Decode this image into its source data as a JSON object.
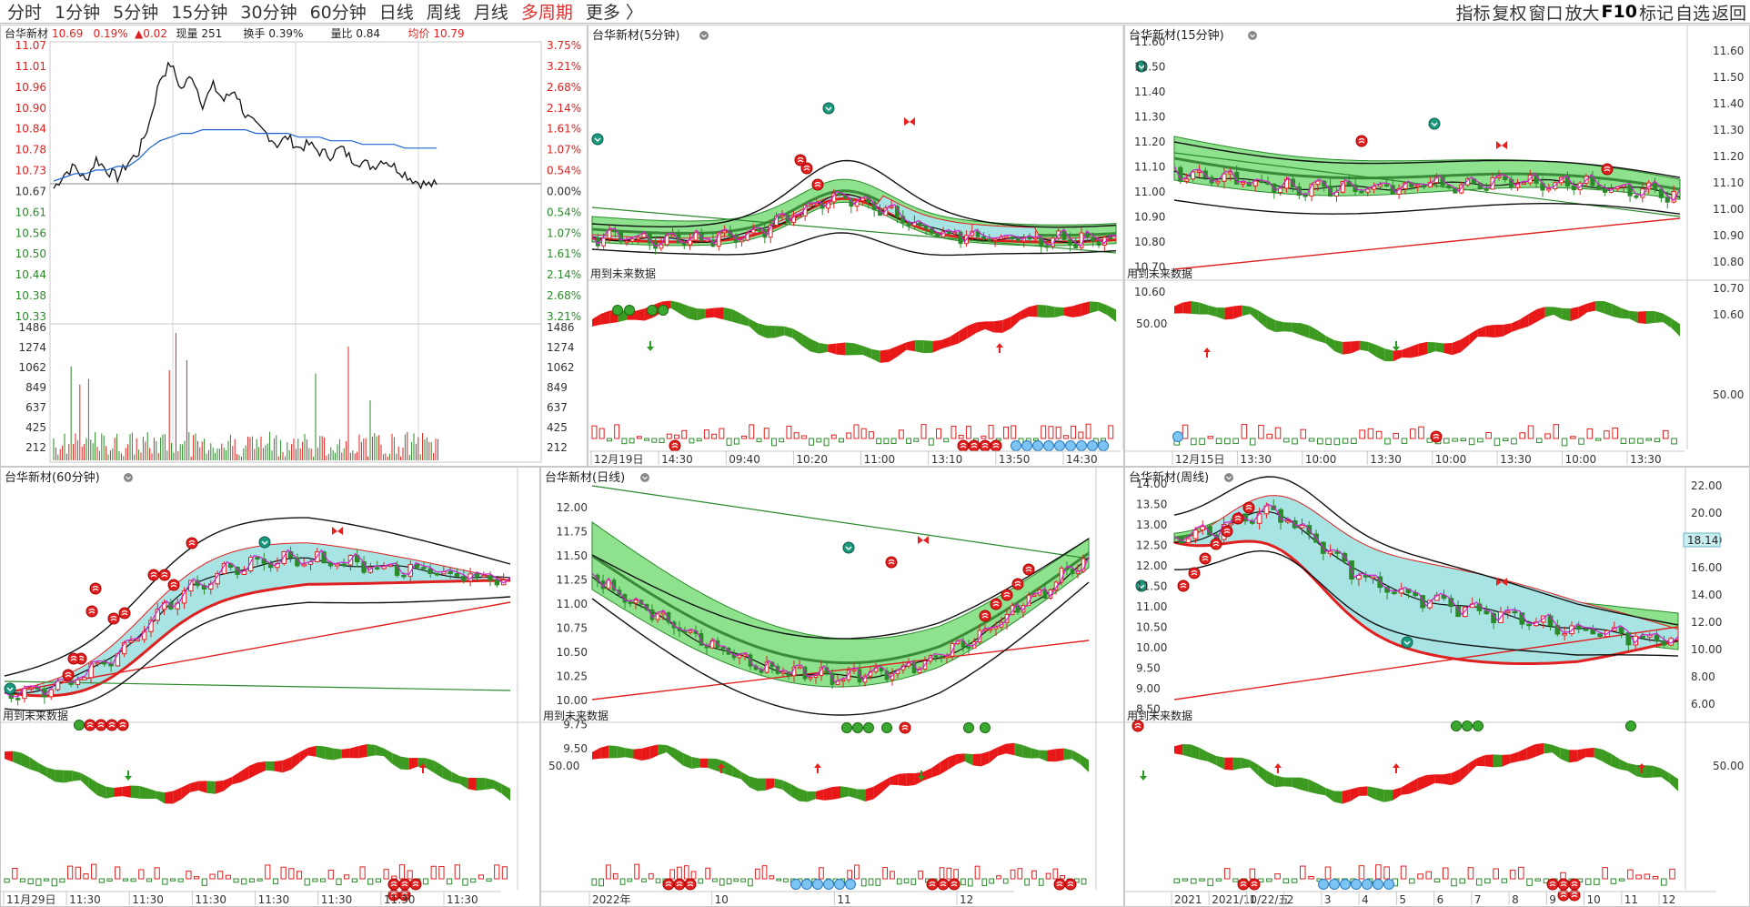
{
  "topbar": {
    "tabs": [
      "分时",
      "1分钟",
      "5分钟",
      "15分钟",
      "30分钟",
      "60分钟",
      "日线",
      "周线",
      "月线",
      "多周期",
      "更多 〉"
    ],
    "active_index": 9,
    "right_menu": [
      "指标",
      "复权",
      "窗口",
      "放大",
      "F10",
      "标记",
      "自选",
      "返回"
    ]
  },
  "panels": {
    "intraday": {
      "title": "台华新材",
      "price": "10.69",
      "pct": "0.19%",
      "change": "▲0.02",
      "volume_label": "现量 251",
      "turnover_label": "换手 0.39%",
      "ratio_label": "量比 0.84",
      "avg_label": "均价 10.79",
      "price_ticks": [
        "11.07",
        "11.01",
        "10.96",
        "10.90",
        "10.84",
        "10.78",
        "10.73",
        "10.67",
        "10.61",
        "10.56",
        "10.50",
        "10.44",
        "10.38",
        "10.33"
      ],
      "pct_ticks": [
        "3.75%",
        "3.21%",
        "2.68%",
        "2.14%",
        "1.61%",
        "1.07%",
        "0.54%",
        "0.00%",
        "0.54%",
        "1.07%",
        "1.61%",
        "2.14%",
        "2.68%",
        "3.21%"
      ],
      "vol_ticks": [
        "1486",
        "1274",
        "1062",
        "849",
        "637",
        "425",
        "212"
      ]
    },
    "m5": {
      "title": "台华新材(5分钟)",
      "note": "用到未来数据",
      "x_labels": [
        "12月19日",
        "14:30",
        "09:40",
        "10:20",
        "11:00",
        "13:10",
        "13:50",
        "14:30"
      ]
    },
    "m15": {
      "title": "台华新材(15分钟)",
      "note": "用到未来数据",
      "y_ticks": [
        "11.60",
        "11.50",
        "11.40",
        "11.30",
        "11.20",
        "11.10",
        "11.00",
        "10.90",
        "10.80",
        "10.70",
        "10.60"
      ],
      "x_labels": [
        "12月15日",
        "13:30",
        "10:00",
        "13:30",
        "10:00",
        "13:30",
        "10:00",
        "13:30"
      ],
      "osc_label": "50.00"
    },
    "m60": {
      "title": "台华新材(60分钟)",
      "note": "用到未来数据",
      "x_labels": [
        "11月29日",
        "11:30",
        "11:30",
        "11:30",
        "11:30",
        "11:30",
        "11:30",
        "11:30"
      ]
    },
    "day": {
      "title": "台华新材(日线)",
      "note": "用到未来数据",
      "y_ticks": [
        "12.00",
        "11.75",
        "11.50",
        "11.25",
        "11.00",
        "10.75",
        "10.50",
        "10.25",
        "10.00",
        "9.75",
        "9.50"
      ],
      "x_labels": [
        "2022年",
        "10",
        "11",
        "12"
      ],
      "osc_label": "50.00"
    },
    "week": {
      "title": "台华新材(周线)",
      "note": "用到未来数据",
      "y_ticks_left": [
        "14.00",
        "13.50",
        "13.00",
        "12.50",
        "12.00",
        "11.50",
        "11.00",
        "10.50",
        "10.00",
        "9.50",
        "9.00",
        "8.50"
      ],
      "y_ticks_right": [
        "22.00",
        "20.00",
        "18.00",
        "16.00",
        "14.00",
        "12.00",
        "10.00",
        "8.00",
        "6.00"
      ],
      "price_tag": "18.14",
      "x_labels": [
        "2021",
        "2021/10/22/五",
        "1",
        "2",
        "3",
        "4",
        "5",
        "6",
        "7",
        "8",
        "9",
        "10",
        "11",
        "12"
      ],
      "osc_label": "50.00"
    }
  },
  "chart_data": {
    "type": "line",
    "title": "台华新材",
    "intraday_price": [
      10.68,
      10.72,
      10.74,
      10.7,
      10.76,
      10.73,
      10.71,
      10.75,
      10.78,
      10.86,
      10.98,
      11.02,
      10.95,
      10.99,
      10.91,
      10.96,
      10.92,
      10.95,
      10.88,
      10.85,
      10.83,
      10.8,
      10.82,
      10.79,
      10.8,
      10.78,
      10.77,
      10.79,
      10.76,
      10.75,
      10.74,
      10.76,
      10.74,
      10.72,
      10.7,
      10.69,
      10.69
    ],
    "intraday_avg": [
      10.7,
      10.71,
      10.72,
      10.72,
      10.73,
      10.73,
      10.74,
      10.74,
      10.76,
      10.79,
      10.81,
      10.82,
      10.83,
      10.83,
      10.84,
      10.84,
      10.84,
      10.84,
      10.84,
      10.83,
      10.83,
      10.83,
      10.83,
      10.82,
      10.82,
      10.82,
      10.81,
      10.81,
      10.81,
      10.8,
      10.8,
      10.8,
      10.8,
      10.79,
      10.79,
      10.79,
      10.79
    ],
    "colors": {
      "up": "#e02020",
      "down": "#2a8a2a",
      "band_green": "#8ee28e",
      "band_cyan": "#a8e4e4",
      "avg_line": "#1e64d0"
    }
  }
}
